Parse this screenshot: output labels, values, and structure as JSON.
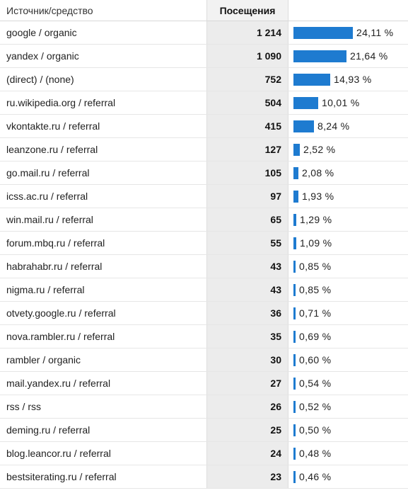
{
  "colors": {
    "bar": "#1e7bd0",
    "visits_column_bg": "#ececec"
  },
  "header": {
    "source_label": "Источник/средство",
    "visits_label": "Посещения"
  },
  "rows": [
    {
      "source": "google / organic",
      "visits": "1 214",
      "percent": "24,11 %",
      "share": 24.11
    },
    {
      "source": "yandex / organic",
      "visits": "1 090",
      "percent": "21,64 %",
      "share": 21.64
    },
    {
      "source": "(direct) / (none)",
      "visits": "752",
      "percent": "14,93 %",
      "share": 14.93
    },
    {
      "source": "ru.wikipedia.org / referral",
      "visits": "504",
      "percent": "10,01 %",
      "share": 10.01
    },
    {
      "source": "vkontakte.ru / referral",
      "visits": "415",
      "percent": "8,24 %",
      "share": 8.24
    },
    {
      "source": "leanzone.ru / referral",
      "visits": "127",
      "percent": "2,52 %",
      "share": 2.52
    },
    {
      "source": "go.mail.ru / referral",
      "visits": "105",
      "percent": "2,08 %",
      "share": 2.08
    },
    {
      "source": "icss.ac.ru / referral",
      "visits": "97",
      "percent": "1,93 %",
      "share": 1.93
    },
    {
      "source": "win.mail.ru / referral",
      "visits": "65",
      "percent": "1,29 %",
      "share": 1.29
    },
    {
      "source": "forum.mbq.ru / referral",
      "visits": "55",
      "percent": "1,09 %",
      "share": 1.09
    },
    {
      "source": "habrahabr.ru / referral",
      "visits": "43",
      "percent": "0,85 %",
      "share": 0.85
    },
    {
      "source": "nigma.ru / referral",
      "visits": "43",
      "percent": "0,85 %",
      "share": 0.85
    },
    {
      "source": "otvety.google.ru / referral",
      "visits": "36",
      "percent": "0,71 %",
      "share": 0.71
    },
    {
      "source": "nova.rambler.ru / referral",
      "visits": "35",
      "percent": "0,69 %",
      "share": 0.69
    },
    {
      "source": "rambler / organic",
      "visits": "30",
      "percent": "0,60 %",
      "share": 0.6
    },
    {
      "source": "mail.yandex.ru / referral",
      "visits": "27",
      "percent": "0,54 %",
      "share": 0.54
    },
    {
      "source": "rss / rss",
      "visits": "26",
      "percent": "0,52 %",
      "share": 0.52
    },
    {
      "source": "deming.ru / referral",
      "visits": "25",
      "percent": "0,50 %",
      "share": 0.5
    },
    {
      "source": "blog.leancor.ru / referral",
      "visits": "24",
      "percent": "0,48 %",
      "share": 0.48
    },
    {
      "source": "bestsiterating.ru / referral",
      "visits": "23",
      "percent": "0,46 %",
      "share": 0.46
    }
  ]
}
